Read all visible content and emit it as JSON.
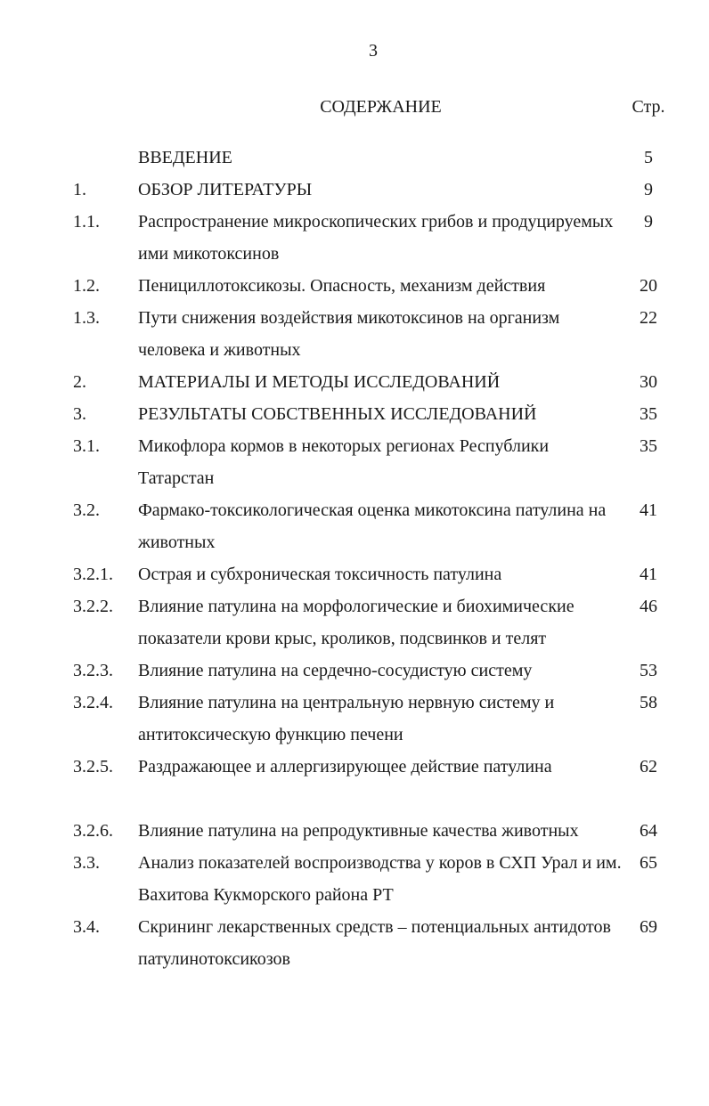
{
  "document": {
    "folio": "3",
    "header": {
      "title": "СОДЕРЖАНИЕ",
      "page_column_label": "Стр."
    },
    "entries": [
      {
        "num": "",
        "title": "ВВЕДЕНИЕ",
        "page": "5"
      },
      {
        "num": "1.",
        "title": "ОБЗОР ЛИТЕРАТУРЫ",
        "page": "9"
      },
      {
        "num": "1.1.",
        "title": "Распространение микроскопических грибов и продуцируемых\nими микотоксинов",
        "page": "9"
      },
      {
        "num": "1.2.",
        "title": "Пенициллотоксикозы. Опасность, механизм действия",
        "page": "20"
      },
      {
        "num": "1.3.",
        "title": "Пути снижения воздействия микотоксинов на организм\nчеловека и животных",
        "page": "22"
      },
      {
        "num": "2.",
        "title": "МАТЕРИАЛЫ И МЕТОДЫ ИССЛЕДОВАНИЙ",
        "page": "30"
      },
      {
        "num": "3.",
        "title": "РЕЗУЛЬТАТЫ СОБСТВЕННЫХ ИССЛЕДОВАНИЙ",
        "page": "35"
      },
      {
        "num": "3.1.",
        "title": "Микофлора кормов в некоторых регионах Республики\nТатарстан",
        "page": "35"
      },
      {
        "num": "3.2.",
        "title": "Фармако-токсикологическая оценка микотоксина патулина на\nживотных",
        "page": "41"
      },
      {
        "num": "3.2.1.",
        "title": "Острая и субхроническая токсичность патулина",
        "page": "41"
      },
      {
        "num": "3.2.2.",
        "title": "Влияние патулина на морфологические и биохимические\nпоказатели крови крыс, кроликов, подсвинков и телят",
        "page": "46"
      },
      {
        "num": "3.2.3.",
        "title": "Влияние патулина на сердечно-сосудистую систему",
        "page": "53"
      },
      {
        "num": "3.2.4.",
        "title": "Влияние патулина на центральную нервную систему и\nантитоксическую функцию печени",
        "page": "58"
      },
      {
        "num": "3.2.5.",
        "title": "Раздражающее и аллергизирующее действие патулина",
        "page": "62"
      },
      {
        "num": "3.2.6.",
        "title": "Влияние патулина на репродуктивные качества животных",
        "page": "64",
        "gap_before": true
      },
      {
        "num": "3.3.",
        "title": "Анализ показателей воспроизводства у коров в СХП Урал и им.\nВахитова Кукморского района РТ",
        "page": "65"
      },
      {
        "num": "3.4.",
        "title": "Скрининг лекарственных средств – потенциальных антидотов\nпатулинотоксикозов",
        "page": "69"
      }
    ]
  }
}
